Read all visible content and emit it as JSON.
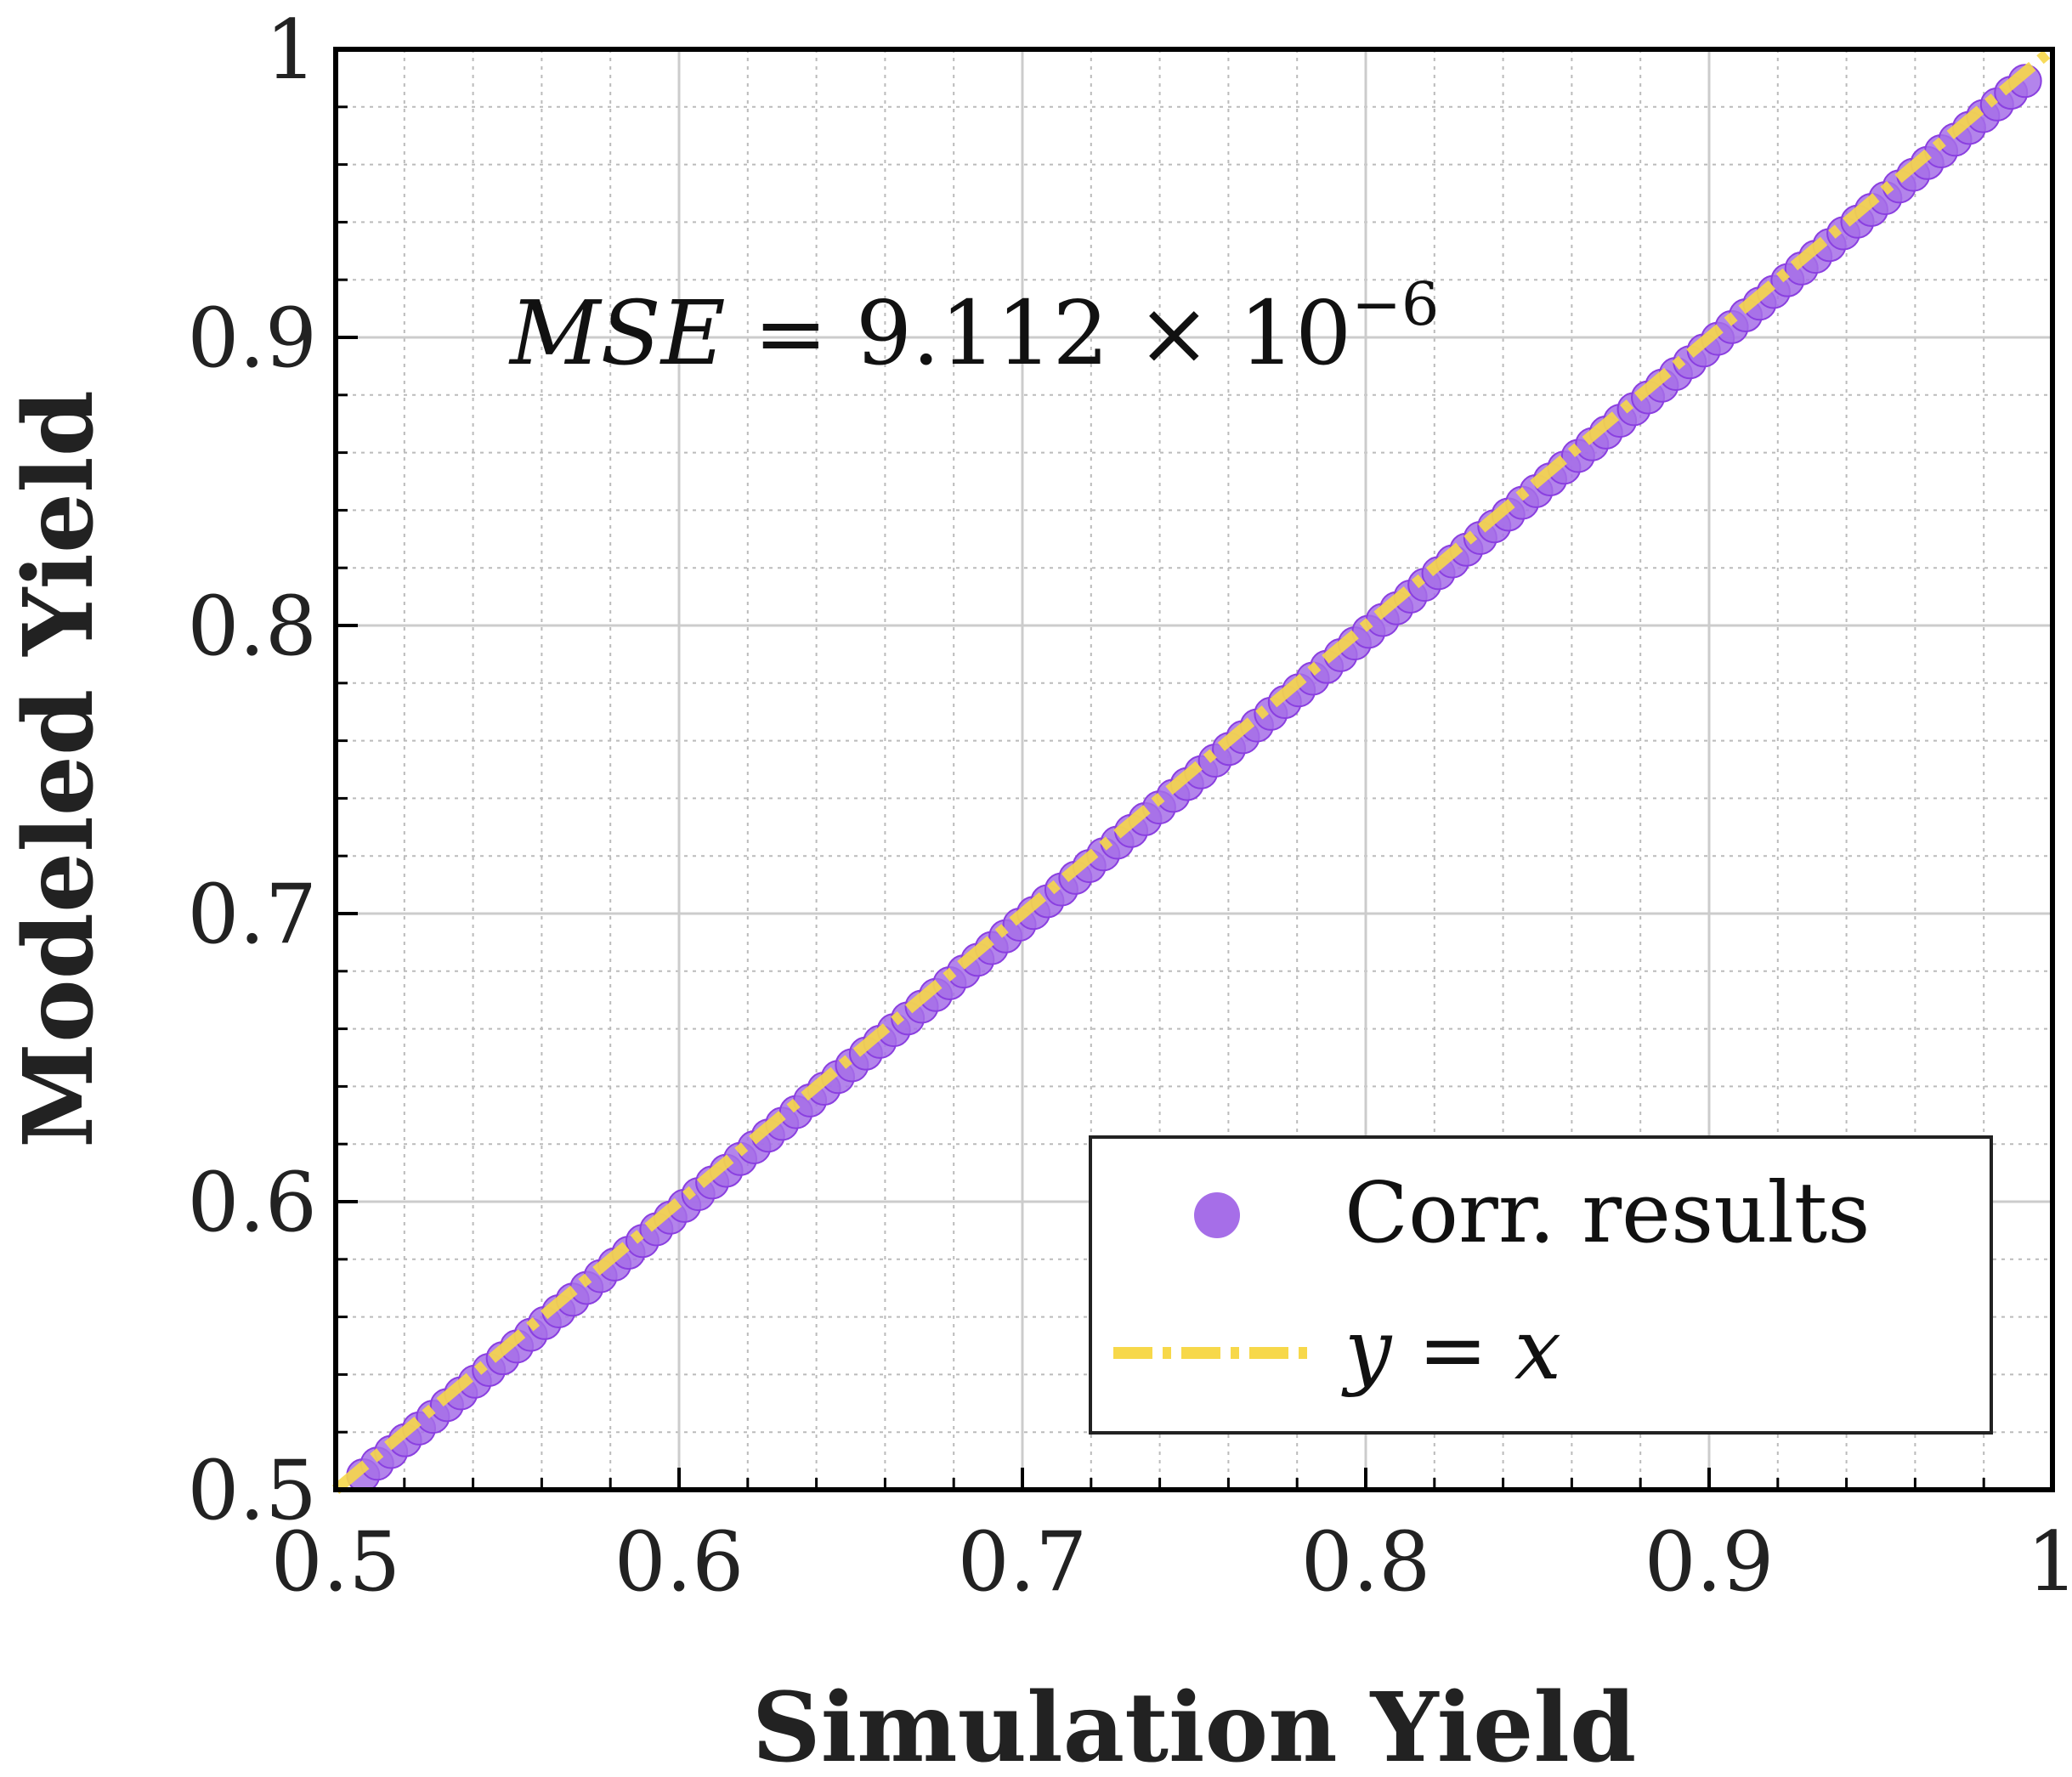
{
  "chart_data": {
    "type": "scatter",
    "title": "",
    "xlabel": "Simulation Yield",
    "ylabel": "Modeled Yield",
    "xlim": [
      0.5,
      1
    ],
    "ylim": [
      0.5,
      1
    ],
    "xticks": [
      "0.5",
      "0.6",
      "0.7",
      "0.8",
      "0.9",
      "1"
    ],
    "yticks": [
      "0.5",
      "0.6",
      "0.7",
      "0.8",
      "0.9",
      "1"
    ],
    "grid": "major and minor",
    "legend_position": "lower-right",
    "annotation": {
      "lhs": "MSE",
      "eq": " = 9.112 × 10",
      "exp": "−6"
    },
    "series": [
      {
        "name": "Corr. results",
        "kind": "scatter",
        "color": "#a66ee8",
        "x_start": 0.508,
        "x_end": 0.992,
        "points": 120,
        "note_relation": "y = x - 0.003"
      },
      {
        "name": "y = x",
        "kind": "line",
        "style": "dash-dot",
        "color": "#f7d84a",
        "x": [
          0.5,
          1.0
        ],
        "y": [
          0.5,
          1.0
        ]
      }
    ],
    "legend": {
      "scatter_label": "Corr. results",
      "line_label_y": "y",
      "line_label_eq": " = ",
      "line_label_x": "x"
    },
    "colors": {
      "scatter": "#a66ee8",
      "scatter_edge": "#8a3fe0",
      "line": "#f7d84a",
      "grid_major": "#cccccc",
      "grid_minor": "#bbbbbb",
      "axes": "#000000"
    }
  }
}
